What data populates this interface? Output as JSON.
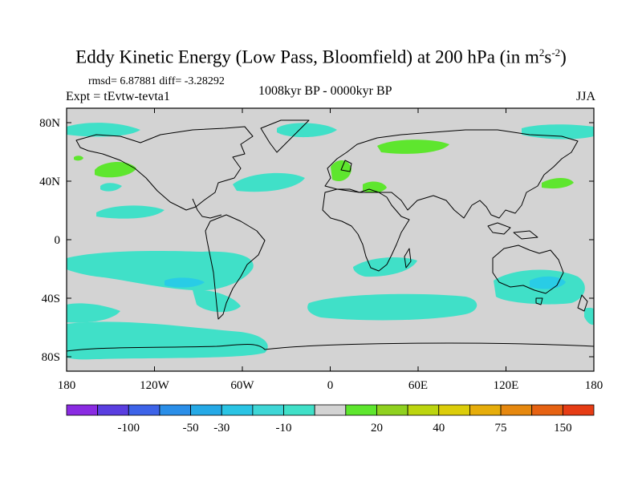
{
  "title": {
    "main": "Eddy Kinetic Energy (Low Pass, Bloomfield) at 200 hPa (in m",
    "sup1": "2",
    "mid": "s",
    "sup2": "-2",
    "close": ")"
  },
  "stats": "rmsd= 6.87881 diff= -3.28292",
  "expt": "Expt = tEvtw-tevta1",
  "period": "1008kyr BP - 0000kyr BP",
  "season": "JJA",
  "map": {
    "lat_ticks": [
      "80N",
      "40N",
      "0",
      "40S",
      "80S"
    ],
    "lon_ticks": [
      "180",
      "120W",
      "60W",
      "0",
      "60E",
      "120E",
      "180"
    ],
    "colors": {
      "background": "#d3d3d3",
      "negative_small": "#40e0c8",
      "negative_mid": "#29cce6",
      "positive_small": "#5ee62e"
    }
  },
  "colorbar": {
    "labels": [
      "-100",
      "-50",
      "-30",
      "-10",
      "20",
      "40",
      "75",
      "150"
    ],
    "colors": [
      "#8a2be2",
      "#5a3ee0",
      "#3d63e8",
      "#2a8ee8",
      "#25a9e6",
      "#2ac4e4",
      "#3ed6d6",
      "#40e0c8",
      "#d3d3d3",
      "#5ee62e",
      "#8fd11f",
      "#bcd50f",
      "#dccd0a",
      "#e6ad0b",
      "#e6880f",
      "#e66212",
      "#e63c14"
    ]
  }
}
